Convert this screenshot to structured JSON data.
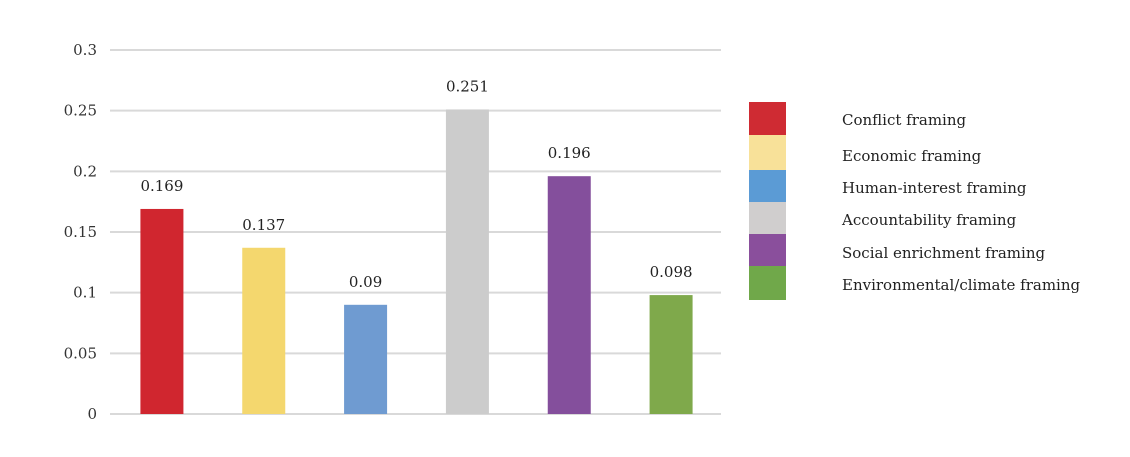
{
  "chart_data": {
    "type": "bar",
    "categories": [
      "Conflict framing",
      "Economic framing",
      "Human-interest framing",
      "Accountability framing",
      "Social enrichment framing",
      "Environmental/climate framing"
    ],
    "values": [
      0.169,
      0.137,
      0.09,
      0.251,
      0.196,
      0.098
    ],
    "value_labels": [
      "0.169",
      "0.137",
      "0.09",
      "0.251",
      "0.196",
      "0.098"
    ],
    "bar_colors": [
      "#d0262f",
      "#f4d76e",
      "#6f9bd1",
      "#cccccc",
      "#844f9c",
      "#7fa94b"
    ],
    "legend_colors": [
      "#cf2b33",
      "#f8e199",
      "#5b9bd5",
      "#d0cece",
      "#8a4f9c",
      "#70a84a"
    ],
    "legend": {
      "placement": "right",
      "entries": [
        "Conflict framing",
        "Economic framing",
        "Human-interest framing",
        "Accountability framing",
        "Social enrichment framing",
        "Environmental/climate framing"
      ]
    },
    "ylim": [
      0,
      0.3
    ],
    "yticks": [
      0,
      0.05,
      0.1,
      0.15,
      0.2,
      0.25,
      0.3
    ],
    "ytick_labels": [
      "0",
      "0.05",
      "0.1",
      "0.15",
      "0.2",
      "0.25",
      "0.3"
    ],
    "grid": true,
    "grid_color": "#d9d9d9",
    "title": "",
    "xlabel": "",
    "ylabel": ""
  }
}
